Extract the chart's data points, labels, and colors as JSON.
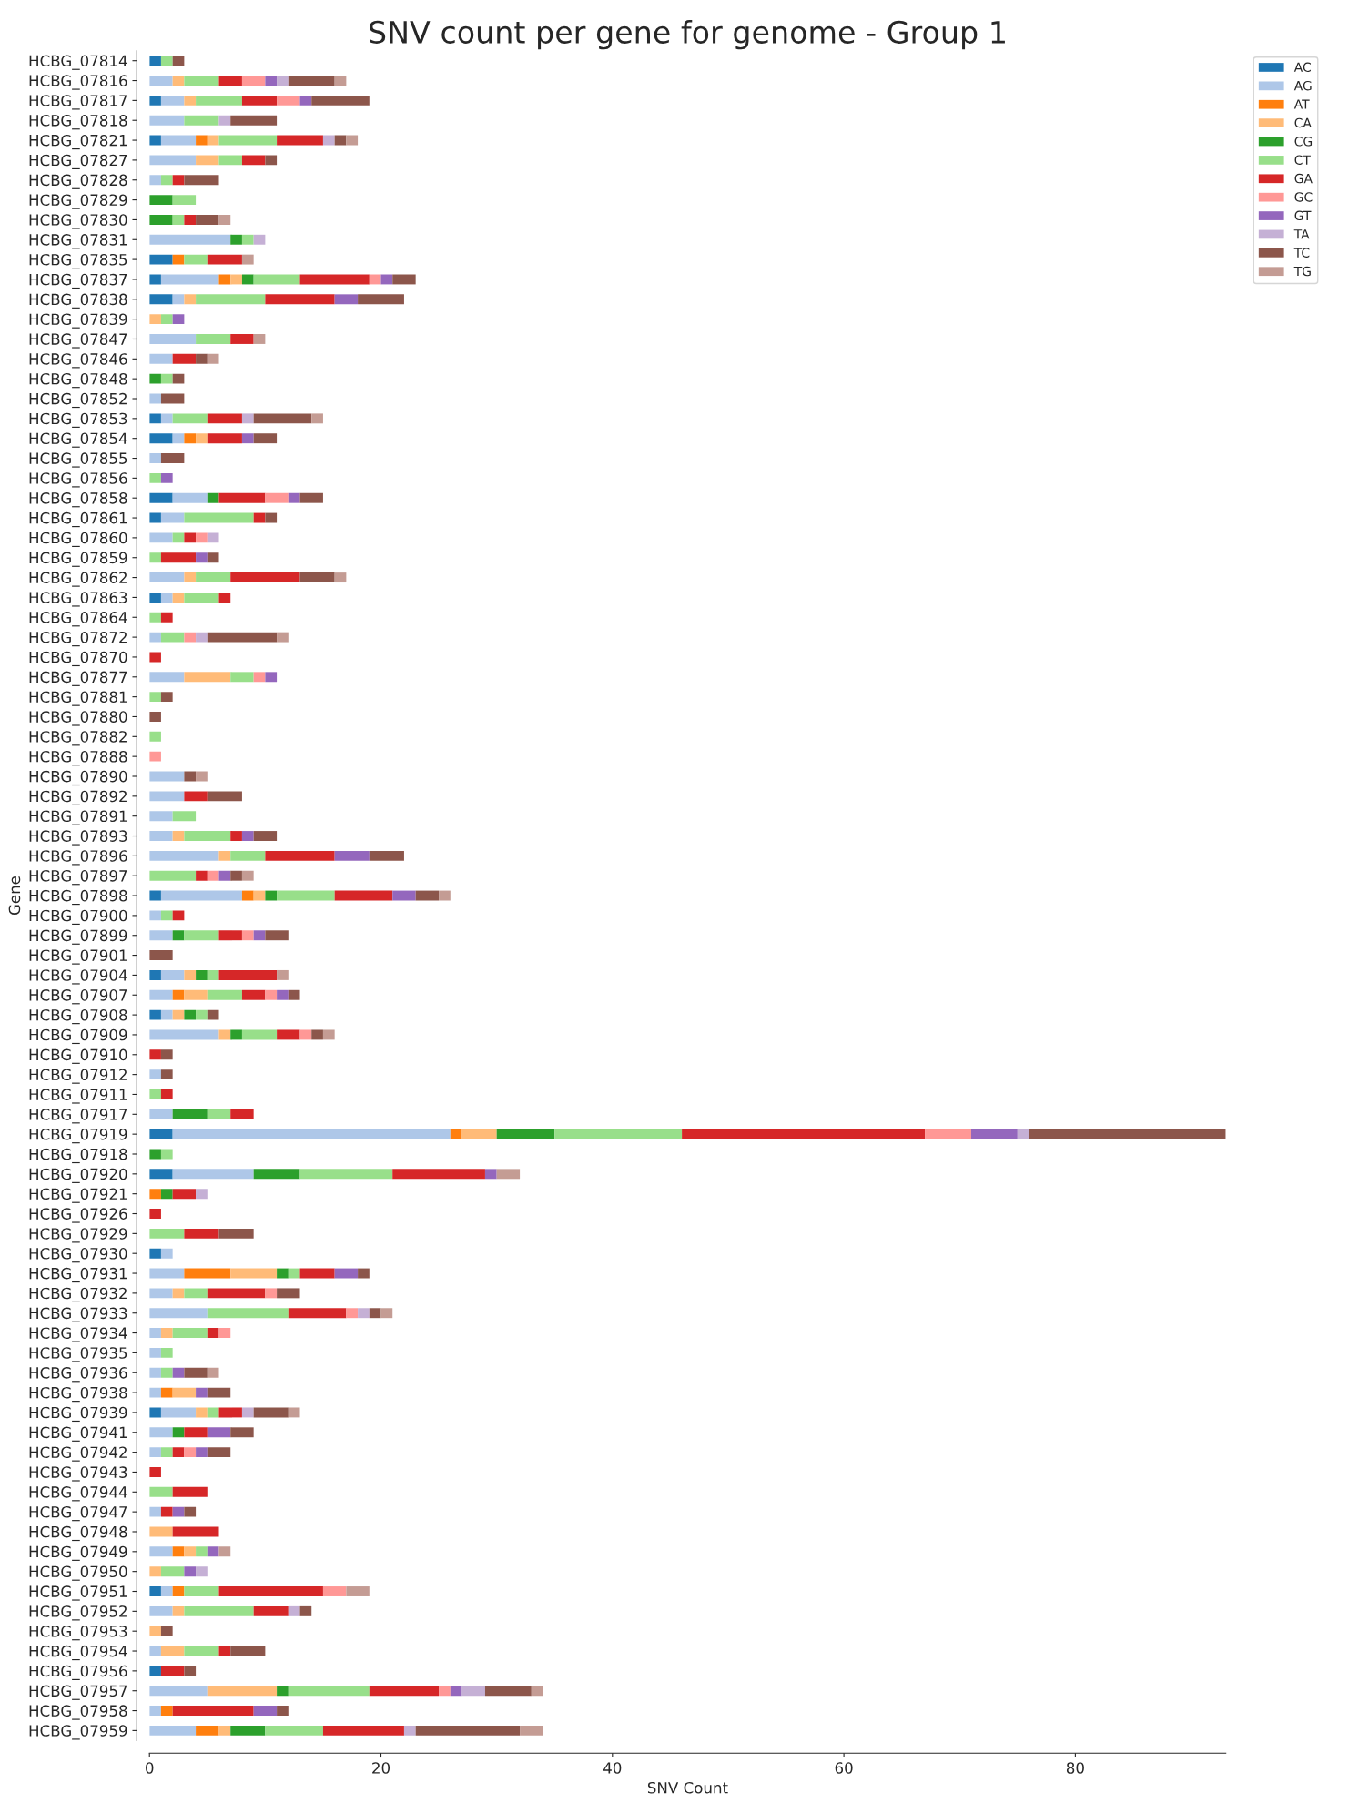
{
  "chart_data": {
    "type": "bar",
    "orientation": "horizontal",
    "stacked": true,
    "title": "SNV count per gene for genome - Group 1",
    "xlabel": "SNV Count",
    "ylabel": "Gene",
    "categories": [
      "HCBG_07814",
      "HCBG_07816",
      "HCBG_07817",
      "HCBG_07818",
      "HCBG_07821",
      "HCBG_07827",
      "HCBG_07828",
      "HCBG_07829",
      "HCBG_07830",
      "HCBG_07831",
      "HCBG_07835",
      "HCBG_07837",
      "HCBG_07838",
      "HCBG_07839",
      "HCBG_07847",
      "HCBG_07846",
      "HCBG_07848",
      "HCBG_07852",
      "HCBG_07853",
      "HCBG_07854",
      "HCBG_07855",
      "HCBG_07856",
      "HCBG_07858",
      "HCBG_07861",
      "HCBG_07860",
      "HCBG_07859",
      "HCBG_07862",
      "HCBG_07863",
      "HCBG_07864",
      "HCBG_07872",
      "HCBG_07870",
      "HCBG_07877",
      "HCBG_07881",
      "HCBG_07880",
      "HCBG_07882",
      "HCBG_07888",
      "HCBG_07890",
      "HCBG_07892",
      "HCBG_07891",
      "HCBG_07893",
      "HCBG_07896",
      "HCBG_07897",
      "HCBG_07898",
      "HCBG_07900",
      "HCBG_07899",
      "HCBG_07901",
      "HCBG_07904",
      "HCBG_07907",
      "HCBG_07908",
      "HCBG_07909",
      "HCBG_07910",
      "HCBG_07912",
      "HCBG_07911",
      "HCBG_07917",
      "HCBG_07919",
      "HCBG_07918",
      "HCBG_07920",
      "HCBG_07921",
      "HCBG_07926",
      "HCBG_07929",
      "HCBG_07930",
      "HCBG_07931",
      "HCBG_07932",
      "HCBG_07933",
      "HCBG_07934",
      "HCBG_07935",
      "HCBG_07936",
      "HCBG_07938",
      "HCBG_07939",
      "HCBG_07941",
      "HCBG_07942",
      "HCBG_07943",
      "HCBG_07944",
      "HCBG_07947",
      "HCBG_07948",
      "HCBG_07949",
      "HCBG_07950",
      "HCBG_07951",
      "HCBG_07952",
      "HCBG_07953",
      "HCBG_07954",
      "HCBG_07956",
      "HCBG_07957",
      "HCBG_07958",
      "HCBG_07959"
    ],
    "series": [
      {
        "name": "AC",
        "color": "#1f77b4",
        "values": [
          1,
          0,
          1,
          0,
          1,
          0,
          0,
          0,
          0,
          0,
          2,
          1,
          2,
          0,
          0,
          0,
          0,
          0,
          1,
          2,
          0,
          0,
          2,
          1,
          0,
          0,
          0,
          1,
          0,
          0,
          0,
          0,
          0,
          0,
          0,
          0,
          0,
          0,
          0,
          0,
          0,
          0,
          1,
          0,
          0,
          0,
          1,
          0,
          1,
          0,
          0,
          0,
          0,
          0,
          2,
          0,
          2,
          0,
          0,
          0,
          1,
          0,
          0,
          0,
          0,
          0,
          0,
          0,
          1,
          0,
          0,
          0,
          0,
          0,
          0,
          0,
          0,
          1,
          0,
          0,
          0,
          1,
          0,
          0,
          0
        ]
      },
      {
        "name": "AG",
        "color": "#aec7e8",
        "values": [
          0,
          2,
          2,
          3,
          3,
          4,
          1,
          0,
          0,
          7,
          0,
          5,
          1,
          0,
          4,
          2,
          0,
          1,
          1,
          1,
          1,
          0,
          3,
          2,
          2,
          0,
          3,
          1,
          0,
          1,
          0,
          3,
          0,
          0,
          0,
          0,
          3,
          3,
          2,
          2,
          6,
          0,
          7,
          1,
          2,
          0,
          2,
          2,
          1,
          6,
          0,
          1,
          0,
          2,
          24,
          0,
          7,
          0,
          0,
          0,
          1,
          3,
          2,
          5,
          1,
          1,
          1,
          1,
          3,
          2,
          1,
          0,
          0,
          1,
          0,
          2,
          0,
          1,
          2,
          0,
          1,
          0,
          5,
          1,
          4
        ]
      },
      {
        "name": "AT",
        "color": "#ff7f0e",
        "values": [
          0,
          0,
          0,
          0,
          1,
          0,
          0,
          0,
          0,
          0,
          1,
          1,
          0,
          0,
          0,
          0,
          0,
          0,
          0,
          1,
          0,
          0,
          0,
          0,
          0,
          0,
          0,
          0,
          0,
          0,
          0,
          0,
          0,
          0,
          0,
          0,
          0,
          0,
          0,
          0,
          0,
          0,
          1,
          0,
          0,
          0,
          0,
          1,
          0,
          0,
          0,
          0,
          0,
          0,
          1,
          0,
          0,
          1,
          0,
          0,
          0,
          4,
          0,
          0,
          0,
          0,
          0,
          1,
          0,
          0,
          0,
          0,
          0,
          0,
          0,
          1,
          0,
          1,
          0,
          0,
          0,
          0,
          0,
          1,
          2
        ]
      },
      {
        "name": "CA",
        "color": "#ffbb78",
        "values": [
          0,
          1,
          1,
          0,
          1,
          2,
          0,
          0,
          0,
          0,
          0,
          1,
          1,
          1,
          0,
          0,
          0,
          0,
          0,
          1,
          0,
          0,
          0,
          0,
          0,
          0,
          1,
          1,
          0,
          0,
          0,
          4,
          0,
          0,
          0,
          0,
          0,
          0,
          0,
          1,
          1,
          0,
          1,
          0,
          0,
          0,
          1,
          2,
          1,
          1,
          0,
          0,
          0,
          0,
          3,
          0,
          0,
          0,
          0,
          0,
          0,
          4,
          1,
          0,
          1,
          0,
          0,
          2,
          1,
          0,
          0,
          0,
          0,
          0,
          2,
          1,
          1,
          0,
          1,
          1,
          2,
          0,
          6,
          0,
          1
        ]
      },
      {
        "name": "CG",
        "color": "#2ca02c",
        "values": [
          0,
          0,
          0,
          0,
          0,
          0,
          0,
          2,
          2,
          1,
          0,
          1,
          0,
          0,
          0,
          0,
          1,
          0,
          0,
          0,
          0,
          0,
          1,
          0,
          0,
          0,
          0,
          0,
          0,
          0,
          0,
          0,
          0,
          0,
          0,
          0,
          0,
          0,
          0,
          0,
          0,
          0,
          1,
          0,
          1,
          0,
          1,
          0,
          1,
          1,
          0,
          0,
          0,
          3,
          5,
          1,
          4,
          1,
          0,
          0,
          0,
          1,
          0,
          0,
          0,
          0,
          0,
          0,
          0,
          1,
          0,
          0,
          0,
          0,
          0,
          0,
          0,
          0,
          0,
          0,
          0,
          0,
          1,
          0,
          3
        ]
      },
      {
        "name": "CT",
        "color": "#98df8a",
        "values": [
          1,
          3,
          4,
          3,
          5,
          2,
          1,
          2,
          1,
          1,
          2,
          4,
          6,
          1,
          3,
          0,
          1,
          0,
          3,
          0,
          0,
          1,
          0,
          6,
          1,
          1,
          3,
          3,
          1,
          2,
          0,
          2,
          1,
          0,
          1,
          0,
          0,
          0,
          2,
          4,
          3,
          4,
          5,
          1,
          3,
          0,
          1,
          3,
          1,
          3,
          0,
          0,
          1,
          2,
          11,
          1,
          8,
          0,
          0,
          3,
          0,
          1,
          2,
          7,
          3,
          1,
          1,
          0,
          1,
          0,
          1,
          0,
          2,
          0,
          0,
          1,
          2,
          3,
          6,
          0,
          3,
          0,
          7,
          0,
          5
        ]
      },
      {
        "name": "GA",
        "color": "#d62728",
        "values": [
          0,
          2,
          3,
          0,
          4,
          2,
          1,
          0,
          1,
          0,
          3,
          6,
          6,
          0,
          2,
          2,
          0,
          0,
          3,
          3,
          0,
          0,
          4,
          1,
          1,
          3,
          6,
          1,
          1,
          0,
          1,
          0,
          0,
          0,
          0,
          0,
          0,
          2,
          0,
          1,
          6,
          1,
          5,
          1,
          2,
          0,
          5,
          2,
          0,
          2,
          1,
          0,
          1,
          2,
          21,
          0,
          8,
          2,
          1,
          3,
          0,
          3,
          5,
          5,
          1,
          0,
          0,
          0,
          2,
          2,
          1,
          1,
          3,
          1,
          4,
          0,
          0,
          9,
          3,
          0,
          1,
          2,
          6,
          7,
          7
        ]
      },
      {
        "name": "GC",
        "color": "#ff9896",
        "values": [
          0,
          2,
          2,
          0,
          0,
          0,
          0,
          0,
          0,
          0,
          0,
          1,
          0,
          0,
          0,
          0,
          0,
          0,
          0,
          0,
          0,
          0,
          2,
          0,
          1,
          0,
          0,
          0,
          0,
          1,
          0,
          1,
          0,
          0,
          0,
          1,
          0,
          0,
          0,
          0,
          0,
          1,
          0,
          0,
          1,
          0,
          0,
          1,
          0,
          1,
          0,
          0,
          0,
          0,
          4,
          0,
          0,
          0,
          0,
          0,
          0,
          0,
          1,
          1,
          1,
          0,
          0,
          0,
          0,
          0,
          1,
          0,
          0,
          0,
          0,
          0,
          0,
          2,
          0,
          0,
          0,
          0,
          1,
          0,
          0
        ]
      },
      {
        "name": "GT",
        "color": "#9467bd",
        "values": [
          0,
          1,
          1,
          0,
          0,
          0,
          0,
          0,
          0,
          0,
          0,
          1,
          2,
          1,
          0,
          0,
          0,
          0,
          0,
          1,
          0,
          1,
          1,
          0,
          0,
          1,
          0,
          0,
          0,
          0,
          0,
          1,
          0,
          0,
          0,
          0,
          0,
          0,
          0,
          1,
          3,
          1,
          2,
          0,
          1,
          0,
          0,
          1,
          0,
          0,
          0,
          0,
          0,
          0,
          4,
          0,
          1,
          0,
          0,
          0,
          0,
          2,
          0,
          0,
          0,
          0,
          1,
          1,
          0,
          2,
          1,
          0,
          0,
          1,
          0,
          1,
          1,
          0,
          0,
          0,
          0,
          0,
          1,
          2,
          0
        ]
      },
      {
        "name": "TA",
        "color": "#c5b0d5",
        "values": [
          0,
          1,
          0,
          1,
          1,
          0,
          0,
          0,
          0,
          1,
          0,
          0,
          0,
          0,
          0,
          0,
          0,
          0,
          1,
          0,
          0,
          0,
          0,
          0,
          1,
          0,
          0,
          0,
          0,
          1,
          0,
          0,
          0,
          0,
          0,
          0,
          0,
          0,
          0,
          0,
          0,
          0,
          0,
          0,
          0,
          0,
          0,
          0,
          0,
          0,
          0,
          0,
          0,
          0,
          1,
          0,
          0,
          1,
          0,
          0,
          0,
          0,
          0,
          1,
          0,
          0,
          0,
          0,
          1,
          0,
          0,
          0,
          0,
          0,
          0,
          0,
          1,
          0,
          1,
          0,
          0,
          0,
          2,
          0,
          1
        ]
      },
      {
        "name": "TC",
        "color": "#8c564b",
        "values": [
          1,
          4,
          5,
          4,
          1,
          1,
          3,
          0,
          2,
          0,
          0,
          2,
          4,
          0,
          0,
          1,
          1,
          2,
          5,
          2,
          2,
          0,
          2,
          1,
          0,
          1,
          3,
          0,
          0,
          6,
          0,
          0,
          1,
          1,
          0,
          0,
          1,
          3,
          0,
          2,
          3,
          1,
          2,
          0,
          2,
          2,
          0,
          1,
          1,
          1,
          1,
          1,
          0,
          0,
          17,
          0,
          0,
          0,
          0,
          3,
          0,
          1,
          2,
          1,
          0,
          0,
          2,
          2,
          3,
          2,
          2,
          0,
          0,
          1,
          0,
          0,
          0,
          0,
          1,
          1,
          3,
          1,
          4,
          1,
          9
        ]
      },
      {
        "name": "TG",
        "color": "#c49c94",
        "values": [
          0,
          1,
          0,
          0,
          1,
          0,
          0,
          0,
          1,
          0,
          1,
          0,
          0,
          0,
          1,
          1,
          0,
          0,
          1,
          0,
          0,
          0,
          0,
          0,
          0,
          0,
          1,
          0,
          0,
          1,
          0,
          0,
          0,
          0,
          0,
          0,
          1,
          0,
          0,
          0,
          0,
          1,
          1,
          0,
          0,
          0,
          1,
          0,
          0,
          1,
          0,
          0,
          0,
          0,
          0,
          0,
          2,
          0,
          0,
          0,
          0,
          0,
          0,
          1,
          0,
          0,
          1,
          0,
          1,
          0,
          0,
          0,
          0,
          0,
          0,
          1,
          0,
          2,
          0,
          0,
          0,
          0,
          1,
          0,
          2
        ]
      }
    ],
    "xlim": [
      0,
      93
    ],
    "xticks": [
      0,
      20,
      40,
      60,
      80
    ],
    "legend": "top right"
  }
}
